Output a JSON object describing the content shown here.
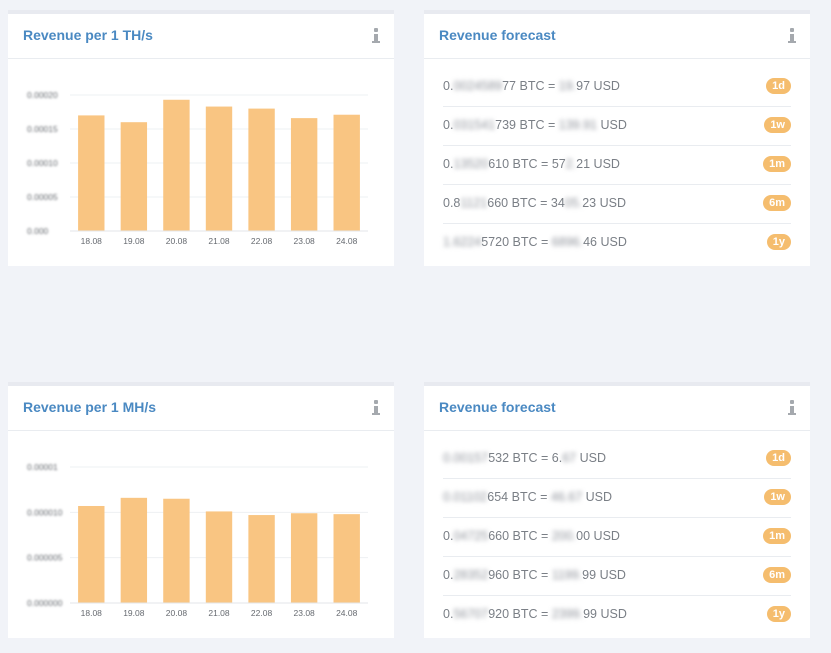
{
  "panels": {
    "th_chart": {
      "title": "Revenue per 1 TH/s"
    },
    "th_forecast": {
      "title": "Revenue forecast"
    },
    "mh_chart": {
      "title": "Revenue per 1 MH/s"
    },
    "mh_forecast": {
      "title": "Revenue forecast"
    }
  },
  "icons": {
    "info": "info-icon"
  },
  "colors": {
    "bar": "#f9c582",
    "badge": "#f5bd6e",
    "title": "#4a89c2"
  },
  "th_forecast_rows": [
    {
      "btc_prefix": "0.",
      "btc_hidden": "0024589",
      "btc_suffix": "77",
      "btc_unit": "BTC =",
      "usd_prefix": "",
      "usd_hidden": "19.",
      "usd_suffix": "97",
      "usd_unit": "USD",
      "period": "1d"
    },
    {
      "btc_prefix": "0.",
      "btc_hidden": "031541",
      "btc_suffix": "739",
      "btc_unit": "BTC =",
      "usd_prefix": "",
      "usd_hidden": "139.91",
      "usd_suffix": "",
      "usd_unit": "USD",
      "period": "1w"
    },
    {
      "btc_prefix": "0.",
      "btc_hidden": "13520",
      "btc_suffix": "610",
      "btc_unit": "BTC =",
      "usd_prefix": "57",
      "usd_hidden": "2.",
      "usd_suffix": "21",
      "usd_unit": "USD",
      "period": "1m"
    },
    {
      "btc_prefix": "0.8",
      "btc_hidden": "1121",
      "btc_suffix": "660",
      "btc_unit": "BTC =",
      "usd_prefix": "34",
      "usd_hidden": "05.",
      "usd_suffix": "23",
      "usd_unit": "USD",
      "period": "6m"
    },
    {
      "btc_prefix": "",
      "btc_hidden": "1.6224",
      "btc_suffix": "5720",
      "btc_unit": "BTC =",
      "usd_prefix": "",
      "usd_hidden": "6896.",
      "usd_suffix": "46",
      "usd_unit": "USD",
      "period": "1y"
    }
  ],
  "mh_forecast_rows": [
    {
      "btc_prefix": "",
      "btc_hidden": "0.00157",
      "btc_suffix": "532",
      "btc_unit": "BTC =",
      "usd_prefix": "6.",
      "usd_hidden": "67",
      "usd_suffix": "",
      "usd_unit": "USD",
      "period": "1d"
    },
    {
      "btc_prefix": "",
      "btc_hidden": "0.01102",
      "btc_suffix": "654",
      "btc_unit": "BTC =",
      "usd_prefix": "",
      "usd_hidden": "46.67",
      "usd_suffix": "",
      "usd_unit": "USD",
      "period": "1w"
    },
    {
      "btc_prefix": "0.",
      "btc_hidden": "04725",
      "btc_suffix": "660",
      "btc_unit": "BTC =",
      "usd_prefix": "",
      "usd_hidden": "200.",
      "usd_suffix": "00",
      "usd_unit": "USD",
      "period": "1m"
    },
    {
      "btc_prefix": "0.",
      "btc_hidden": "28352",
      "btc_suffix": "960",
      "btc_unit": "BTC =",
      "usd_prefix": "",
      "usd_hidden": "1199.",
      "usd_suffix": "99",
      "usd_unit": "USD",
      "period": "6m"
    },
    {
      "btc_prefix": "0.",
      "btc_hidden": "56707",
      "btc_suffix": "920",
      "btc_unit": "BTC =",
      "usd_prefix": "",
      "usd_hidden": "2399.",
      "usd_suffix": "99",
      "usd_unit": "USD",
      "period": "1y"
    }
  ],
  "chart_data": [
    {
      "type": "bar",
      "categories": [
        "18.08",
        "19.08",
        "20.08",
        "21.08",
        "22.08",
        "23.08",
        "24.08"
      ],
      "values": [
        0.00017,
        0.00016,
        0.000193,
        0.000183,
        0.00018,
        0.000166,
        0.000171
      ],
      "ytick_labels": [
        "0.000",
        "0.00005",
        "0.00010",
        "0.00015",
        "0.00020"
      ],
      "ylim": [
        0,
        0.0002
      ],
      "grid": true,
      "title": "Revenue per 1 TH/s"
    },
    {
      "type": "bar",
      "categories": [
        "18.08",
        "19.08",
        "20.08",
        "21.08",
        "22.08",
        "23.08",
        "24.08"
      ],
      "values": [
        1.07e-05,
        1.16e-05,
        1.15e-05,
        1.01e-05,
        9.7e-06,
        9.9e-06,
        9.8e-06
      ],
      "ytick_labels": [
        "0.000000",
        "0.000005",
        "0.000010",
        "0.00001"
      ],
      "ylim": [
        0,
        1.5e-05
      ],
      "grid": true,
      "title": "Revenue per 1 MH/s"
    }
  ]
}
